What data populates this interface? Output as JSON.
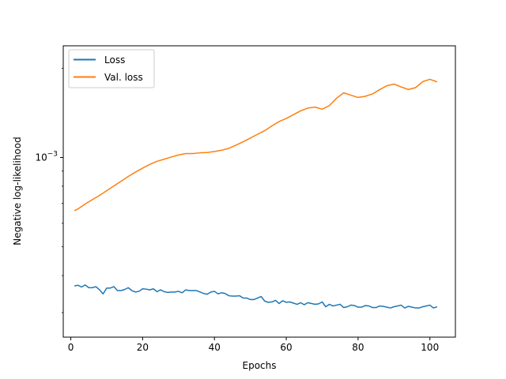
{
  "chart_data": {
    "type": "line",
    "xlabel": "Epochs",
    "ylabel": "Negative log-likelihood",
    "y_scale": "log",
    "xlim": [
      -2.1,
      107.1
    ],
    "ylim": [
      0.000248,
      0.00238
    ],
    "x_ticks": [
      0,
      20,
      40,
      60,
      80,
      100
    ],
    "x_tick_labels": [
      "0",
      "20",
      "40",
      "60",
      "80",
      "100"
    ],
    "y_ticks": [
      0.001
    ],
    "y_tick_base": "10",
    "y_tick_exponent": "−3",
    "legend": "top-left",
    "grid": false,
    "series": [
      {
        "name": "Loss",
        "color": "#1f77b4",
        "x": [
          1,
          2,
          3,
          4,
          5,
          6,
          7,
          8,
          9,
          10,
          11,
          12,
          13,
          14,
          15,
          16,
          17,
          18,
          19,
          20,
          21,
          22,
          23,
          24,
          25,
          26,
          27,
          28,
          29,
          30,
          31,
          32,
          33,
          34,
          35,
          36,
          37,
          38,
          39,
          40,
          41,
          42,
          43,
          44,
          45,
          46,
          47,
          48,
          49,
          50,
          51,
          52,
          53,
          54,
          55,
          56,
          57,
          58,
          59,
          60,
          61,
          62,
          63,
          64,
          65,
          66,
          67,
          68,
          69,
          70,
          71,
          72,
          73,
          74,
          75,
          76,
          77,
          78,
          79,
          80,
          81,
          82,
          83,
          84,
          85,
          86,
          87,
          88,
          89,
          90,
          91,
          92,
          93,
          94,
          95,
          96,
          97,
          98,
          99,
          100,
          101,
          102
        ],
        "values": [
          0.000369,
          0.000371,
          0.000366,
          0.000372,
          0.000364,
          0.000364,
          0.000367,
          0.000358,
          0.000347,
          0.000363,
          0.000363,
          0.000367,
          0.000356,
          0.000356,
          0.000359,
          0.000364,
          0.000356,
          0.000352,
          0.000354,
          0.000361,
          0.00036,
          0.000358,
          0.000361,
          0.000353,
          0.000358,
          0.000353,
          0.000351,
          0.000352,
          0.000352,
          0.000354,
          0.00035,
          0.000358,
          0.000356,
          0.000356,
          0.000356,
          0.000352,
          0.000348,
          0.000346,
          0.000352,
          0.000354,
          0.000347,
          0.00035,
          0.000348,
          0.000342,
          0.000341,
          0.000341,
          0.000342,
          0.000336,
          0.000336,
          0.000332,
          0.000332,
          0.000336,
          0.00034,
          0.000328,
          0.000325,
          0.000326,
          0.00033,
          0.000322,
          0.000329,
          0.000325,
          0.000326,
          0.000323,
          0.00032,
          0.000324,
          0.000319,
          0.000324,
          0.000322,
          0.00032,
          0.000321,
          0.000326,
          0.000314,
          0.00032,
          0.000316,
          0.000318,
          0.00032,
          0.000312,
          0.000314,
          0.000318,
          0.000317,
          0.000313,
          0.000313,
          0.000317,
          0.000316,
          0.000312,
          0.000312,
          0.000316,
          0.000315,
          0.000313,
          0.000311,
          0.000314,
          0.000316,
          0.000318,
          0.000311,
          0.000315,
          0.000313,
          0.000311,
          0.000311,
          0.000314,
          0.000316,
          0.000318,
          0.000311,
          0.000314
        ]
      },
      {
        "name": "Val. loss",
        "color": "#ff7f0e",
        "x": [
          1,
          2,
          4,
          6,
          8,
          10,
          12,
          14,
          16,
          18,
          20,
          22,
          24,
          26,
          28,
          30,
          32,
          34,
          36,
          38,
          40,
          42,
          44,
          46,
          48,
          50,
          52,
          54,
          56,
          58,
          60,
          62,
          64,
          66,
          68,
          70,
          72,
          74,
          76,
          78,
          80,
          82,
          84,
          86,
          88,
          90,
          92,
          94,
          96,
          98,
          100,
          102
        ],
        "values": [
          0.000662,
          0.000671,
          0.000697,
          0.000721,
          0.000745,
          0.000773,
          0.000802,
          0.000832,
          0.000863,
          0.000893,
          0.000921,
          0.000948,
          0.000971,
          0.000987,
          0.001004,
          0.00102,
          0.001031,
          0.001031,
          0.001037,
          0.00104,
          0.001048,
          0.001058,
          0.001074,
          0.001101,
          0.00113,
          0.001163,
          0.001197,
          0.001232,
          0.001278,
          0.001322,
          0.001354,
          0.001395,
          0.001436,
          0.001468,
          0.001479,
          0.001455,
          0.001496,
          0.001584,
          0.001653,
          0.001622,
          0.001594,
          0.001608,
          0.001638,
          0.001693,
          0.001745,
          0.001768,
          0.001729,
          0.001695,
          0.00172,
          0.001802,
          0.001835,
          0.001798
        ]
      }
    ]
  }
}
